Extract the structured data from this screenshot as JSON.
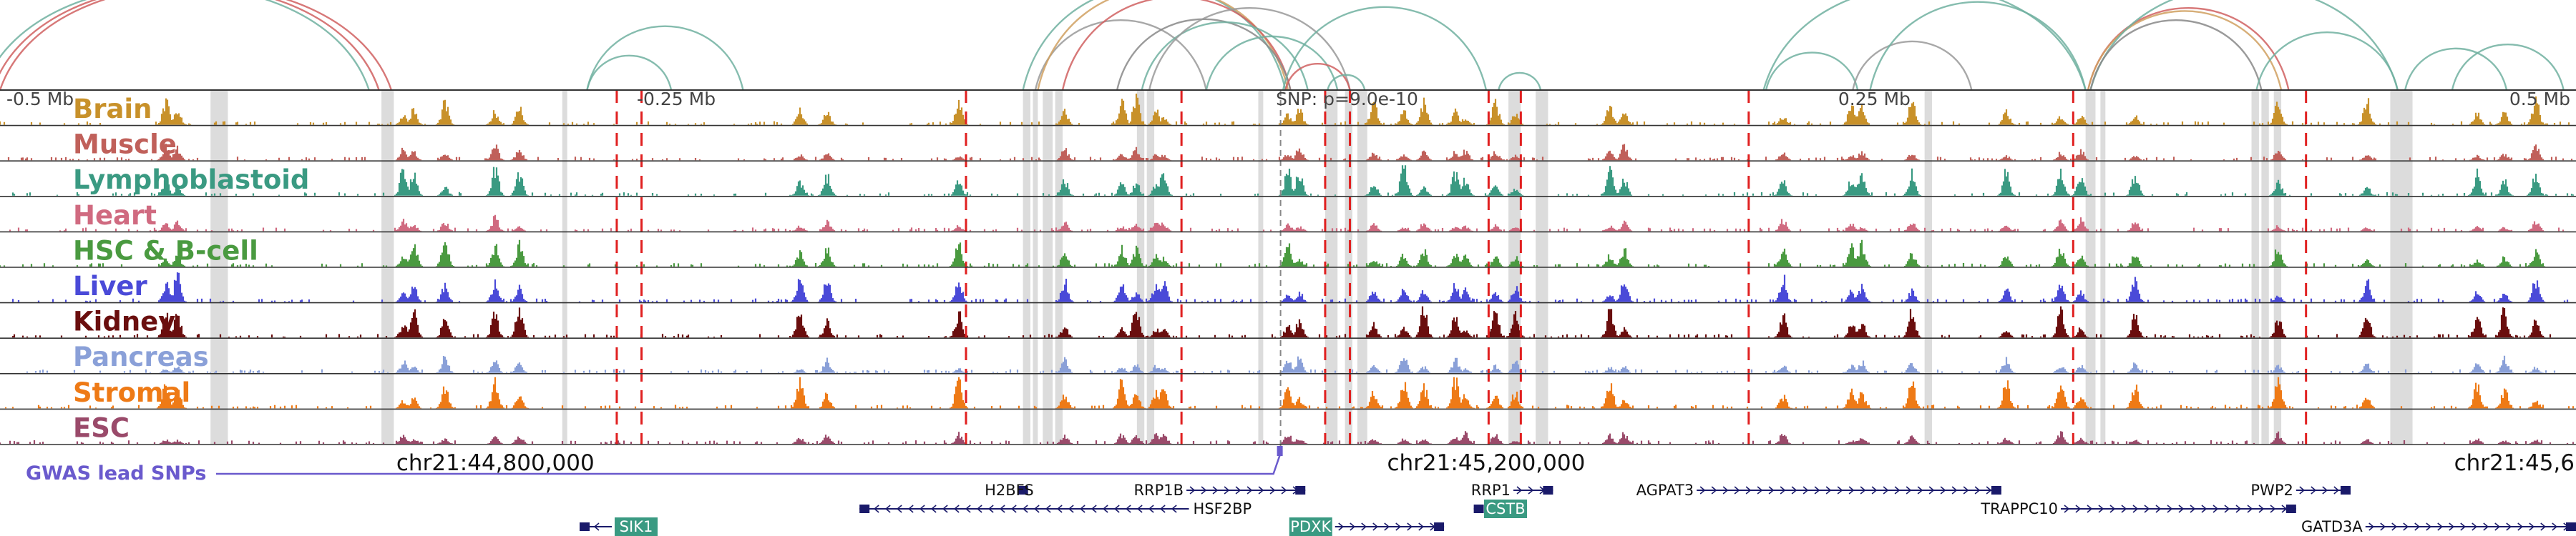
{
  "chart_data": {
    "type": "area",
    "region": "chr21",
    "x_unit": "bp",
    "xlim": [
      44600000,
      45640000
    ],
    "tracks": [
      {
        "name": "Brain",
        "color": "#c8912a"
      },
      {
        "name": "Muscle",
        "color": "#c0605a"
      },
      {
        "name": "Lymphoblastoid",
        "color": "#3a9a82"
      },
      {
        "name": "Heart",
        "color": "#d06a80"
      },
      {
        "name": "HSC & B-cell",
        "color": "#4a9a40"
      },
      {
        "name": "Liver",
        "color": "#4a4ad8"
      },
      {
        "name": "Kidney",
        "color": "#6a0e0e"
      },
      {
        "name": "Pancreas",
        "color": "#8aa0d8"
      },
      {
        "name": "Stromal",
        "color": "#ee7a16"
      },
      {
        "name": "ESC",
        "color": "#9a4a6a"
      }
    ],
    "peak_positions": [
      44667000,
      44672000,
      44763000,
      44767000,
      44780000,
      44800000,
      44810000,
      44923000,
      44934000,
      44987000,
      45030000,
      45053000,
      45059000,
      45067000,
      45070000,
      45120000,
      45125000,
      45155000,
      45167000,
      45175000,
      45188000,
      45192000,
      45204000,
      45212000,
      45250000,
      45256000,
      45320000,
      45348000,
      45352000,
      45372000,
      45410000,
      45432000,
      45440000,
      45462000,
      45520000,
      45556000,
      45600000,
      45611000,
      45624000
    ],
    "relative_position_labels": [
      {
        "label": "-0.5 Mb",
        "position": 44600000
      },
      {
        "label": "-0.25 Mb",
        "position": 44860000
      },
      {
        "label": "SNP: p=9.0e-10",
        "position": 45118000
      },
      {
        "label": "0.25 Mb",
        "position": 45345000
      },
      {
        "label": "0.5 Mb",
        "position": 45605000
      }
    ],
    "coordinate_labels": [
      {
        "label": "chr21:44,800,000",
        "position": 44800000
      },
      {
        "label": "chr21:45,200,000",
        "position": 45200000
      },
      {
        "label": "chr21:45,6",
        "position": 45598000
      }
    ],
    "lead_snp": {
      "label": "GWAS lead SNPs",
      "position": 45117000,
      "color": "#6a5acd"
    },
    "variant_markers": [
      44849000,
      44859000,
      44990000,
      45077000,
      45135000,
      45145000,
      45201000,
      45214000,
      45306000,
      45437000,
      45531000
    ],
    "highlight_regions": [
      [
        44685000,
        44692000
      ],
      [
        44754000,
        44759000
      ],
      [
        44827000,
        44829000
      ],
      [
        45013000,
        45016000
      ],
      [
        45017000,
        45019000
      ],
      [
        45021000,
        45025000
      ],
      [
        45026000,
        45029000
      ],
      [
        45059000,
        45062000
      ],
      [
        45063000,
        45066000
      ],
      [
        45108000,
        45110000
      ],
      [
        45135000,
        45140000
      ],
      [
        45143000,
        45146000
      ],
      [
        45148000,
        45152000
      ],
      [
        45209000,
        45214000
      ],
      [
        45220000,
        45225000
      ],
      [
        45377000,
        45380000
      ],
      [
        45442000,
        45446000
      ],
      [
        45448000,
        45450000
      ],
      [
        45509000,
        45512000
      ],
      [
        45513000,
        45516000
      ],
      [
        45518000,
        45521000
      ],
      [
        45565000,
        45574000
      ]
    ],
    "loops": [
      {
        "start": 44597000,
        "end": 44753000,
        "color": "#d06060"
      },
      {
        "start": 44600000,
        "end": 44758000,
        "color": "#d06060"
      },
      {
        "start": 44593000,
        "end": 44749000,
        "color": "#70b0a0"
      },
      {
        "start": 44837000,
        "end": 44871000,
        "color": "#70b0a0"
      },
      {
        "start": 44837000,
        "end": 44900000,
        "color": "#70b0a0"
      },
      {
        "start": 45013000,
        "end": 45119000,
        "color": "#70b0a0"
      },
      {
        "start": 45018000,
        "end": 45087000,
        "color": "#999999"
      },
      {
        "start": 45019000,
        "end": 45120000,
        "color": "#d0a060"
      },
      {
        "start": 45029000,
        "end": 45121000,
        "color": "#d06060"
      },
      {
        "start": 45051000,
        "end": 45121000,
        "color": "#888888"
      },
      {
        "start": 45061000,
        "end": 45128000,
        "color": "#70b0a0"
      },
      {
        "start": 45064000,
        "end": 45145000,
        "color": "#999999"
      },
      {
        "start": 45087000,
        "end": 45140000,
        "color": "#70b0a0"
      },
      {
        "start": 45119000,
        "end": 45145000,
        "color": "#d06060"
      },
      {
        "start": 45136000,
        "end": 45151000,
        "color": "#70b0a0"
      },
      {
        "start": 45118000,
        "end": 45200000,
        "color": "#70b0a0"
      },
      {
        "start": 45205000,
        "end": 45222000,
        "color": "#70b0a0"
      },
      {
        "start": 45312000,
        "end": 45442000,
        "color": "#70b0a0"
      },
      {
        "start": 45313000,
        "end": 45350000,
        "color": "#70b0a0"
      },
      {
        "start": 45348000,
        "end": 45396000,
        "color": "#999999"
      },
      {
        "start": 45355000,
        "end": 45442000,
        "color": "#70b0a0"
      },
      {
        "start": 45443000,
        "end": 45524000,
        "color": "#d06060"
      },
      {
        "start": 45443000,
        "end": 45521000,
        "color": "#d0a060"
      },
      {
        "start": 45444000,
        "end": 45568000,
        "color": "#70b0a0"
      },
      {
        "start": 45444000,
        "end": 45513000,
        "color": "#888888"
      },
      {
        "start": 45511000,
        "end": 45568000,
        "color": "#70b0a0"
      },
      {
        "start": 45571000,
        "end": 45612000,
        "color": "#70b0a0"
      },
      {
        "start": 45590000,
        "end": 45635000,
        "color": "#70b0a0"
      }
    ],
    "genes": [
      {
        "name": "SIK1",
        "start": 44834000,
        "end": 44847000,
        "strand": "-",
        "row": 2,
        "boxed": true
      },
      {
        "name": "H2BFS",
        "start": 45011000,
        "end": 45012000,
        "strand": "-",
        "row": 0,
        "boxed": false
      },
      {
        "name": "HSF2BP",
        "start": 44947000,
        "end": 45080000,
        "strand": "-",
        "row": 1,
        "boxed": false
      },
      {
        "name": "RRP1B",
        "start": 45079000,
        "end": 45127000,
        "strand": "+",
        "row": 0,
        "boxed": false
      },
      {
        "name": "PDXK",
        "start": 45139000,
        "end": 45183000,
        "strand": "+",
        "row": 2,
        "boxed": true
      },
      {
        "name": "RRP1",
        "start": 45211000,
        "end": 45227000,
        "strand": "+",
        "row": 0,
        "boxed": false
      },
      {
        "name": "CSTB",
        "start": 45195000,
        "end": 45198000,
        "strand": "-",
        "row": 1,
        "boxed": true
      },
      {
        "name": "AGPAT3",
        "start": 45285000,
        "end": 45408000,
        "strand": "+",
        "row": 0,
        "boxed": false
      },
      {
        "name": "TRAPPC10",
        "start": 45432000,
        "end": 45527000,
        "strand": "+",
        "row": 1,
        "boxed": false
      },
      {
        "name": "PWP2",
        "start": 45527000,
        "end": 45549000,
        "strand": "+",
        "row": 0,
        "boxed": false
      },
      {
        "name": "GATD3A",
        "start": 45555000,
        "end": 45640000,
        "strand": "+",
        "row": 2,
        "boxed": false
      }
    ],
    "grid": false
  }
}
